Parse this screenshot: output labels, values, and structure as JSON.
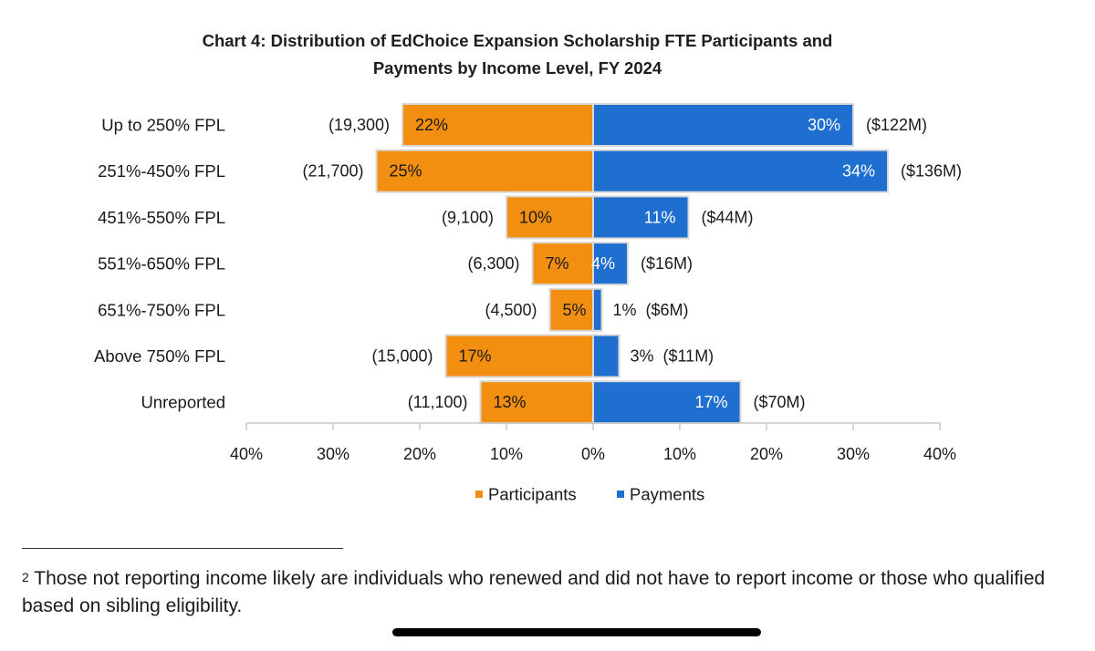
{
  "chart_data": {
    "type": "bar",
    "orientation": "horizontal-diverging",
    "title_lines": [
      "Chart 4: Distribution of EdChoice Expansion Scholarship FTE Participants and",
      "Payments by Income Level, FY 2024"
    ],
    "categories": [
      "Up to 250% FPL",
      "251%-450% FPL",
      "451%-550% FPL",
      "551%-650% FPL",
      "651%-750% FPL",
      "Above 750% FPL",
      "Unreported"
    ],
    "series": [
      {
        "name": "Participants",
        "color": "#F28E10",
        "direction": "left",
        "values": [
          22,
          25,
          10,
          7,
          5,
          17,
          13
        ],
        "value_labels": [
          "22%",
          "25%",
          "10%",
          "7%",
          "5%",
          "17%",
          "13%"
        ],
        "count_labels": [
          "(19,300)",
          "(21,700)",
          "(9,100)",
          "(6,300)",
          "(4,500)",
          "(15,000)",
          "(11,100)"
        ]
      },
      {
        "name": "Payments",
        "color": "#1F6FD0",
        "direction": "right",
        "values": [
          30,
          34,
          11,
          4,
          1,
          3,
          17
        ],
        "value_labels": [
          "30%",
          "34%",
          "11%",
          "4%",
          "1%",
          "3%",
          "17%"
        ],
        "amount_labels": [
          "($122M)",
          "($136M)",
          "($44M)",
          "($16M)",
          "($6M)",
          "($11M)",
          "($70M)"
        ]
      }
    ],
    "xlim": [
      -40,
      40
    ],
    "x_ticks": [
      -40,
      -30,
      -20,
      -10,
      0,
      10,
      20,
      30,
      40
    ],
    "x_tick_labels": [
      "40%",
      "30%",
      "20%",
      "10%",
      "0%",
      "10%",
      "20%",
      "30%",
      "40%"
    ],
    "grid": false,
    "legend_position": "bottom-center"
  },
  "footnote": {
    "marker": "2",
    "text": "Those not reporting income likely are individuals who renewed and did not have to report income or those who qualified based on sibling eligibility."
  }
}
